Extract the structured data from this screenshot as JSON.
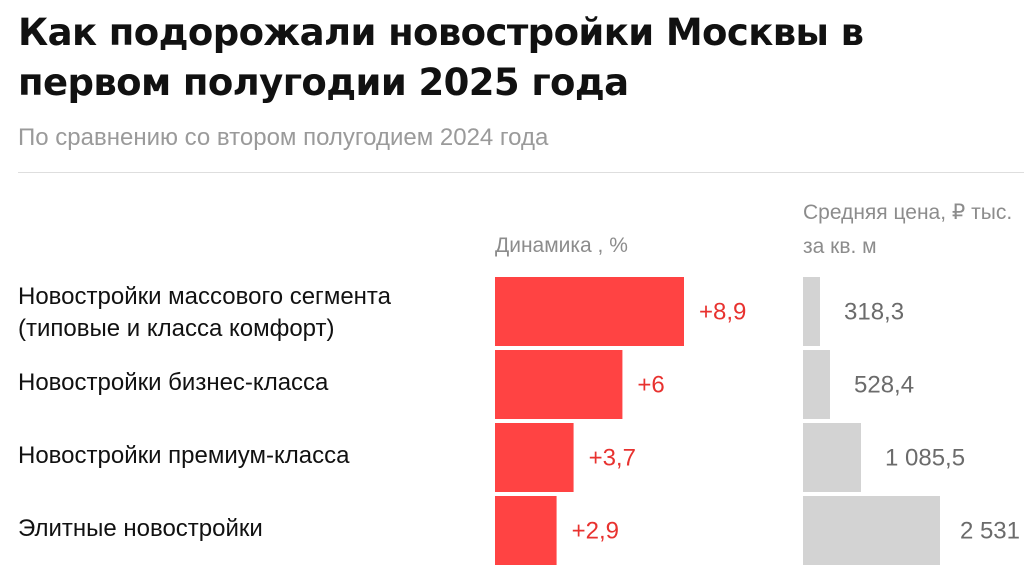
{
  "title": "Как подорожали новостройки Москвы в первом полугодии 2025 года",
  "subtitle": "По сравнению со втором полугодием 2024 года",
  "colors": {
    "dynamics_bar": "#ff4343",
    "dynamics_label": "#e8322f",
    "price_bar": "#d3d3d3",
    "price_label": "#6b6b6b"
  },
  "chart_data": {
    "type": "bar",
    "orientation": "horizontal",
    "categories": [
      "Новостройки массового сегмента (типовые и класса комфорт)",
      "Новостройки бизнес-класса",
      "Новостройки премиум-класса",
      "Элитные новостройки"
    ],
    "series": [
      {
        "name": "Динамика , %",
        "values": [
          8.9,
          6,
          3.7,
          2.9
        ],
        "labels": [
          "+8,9",
          "+6",
          "+3,7",
          "+2,9"
        ]
      },
      {
        "name": "Средняя цена, ₽ тыс. за кв. м",
        "values": [
          318.3,
          528.4,
          1085.5,
          2531
        ],
        "labels": [
          "318,3",
          "528,4",
          "1 085,5",
          "2 531"
        ]
      }
    ]
  }
}
